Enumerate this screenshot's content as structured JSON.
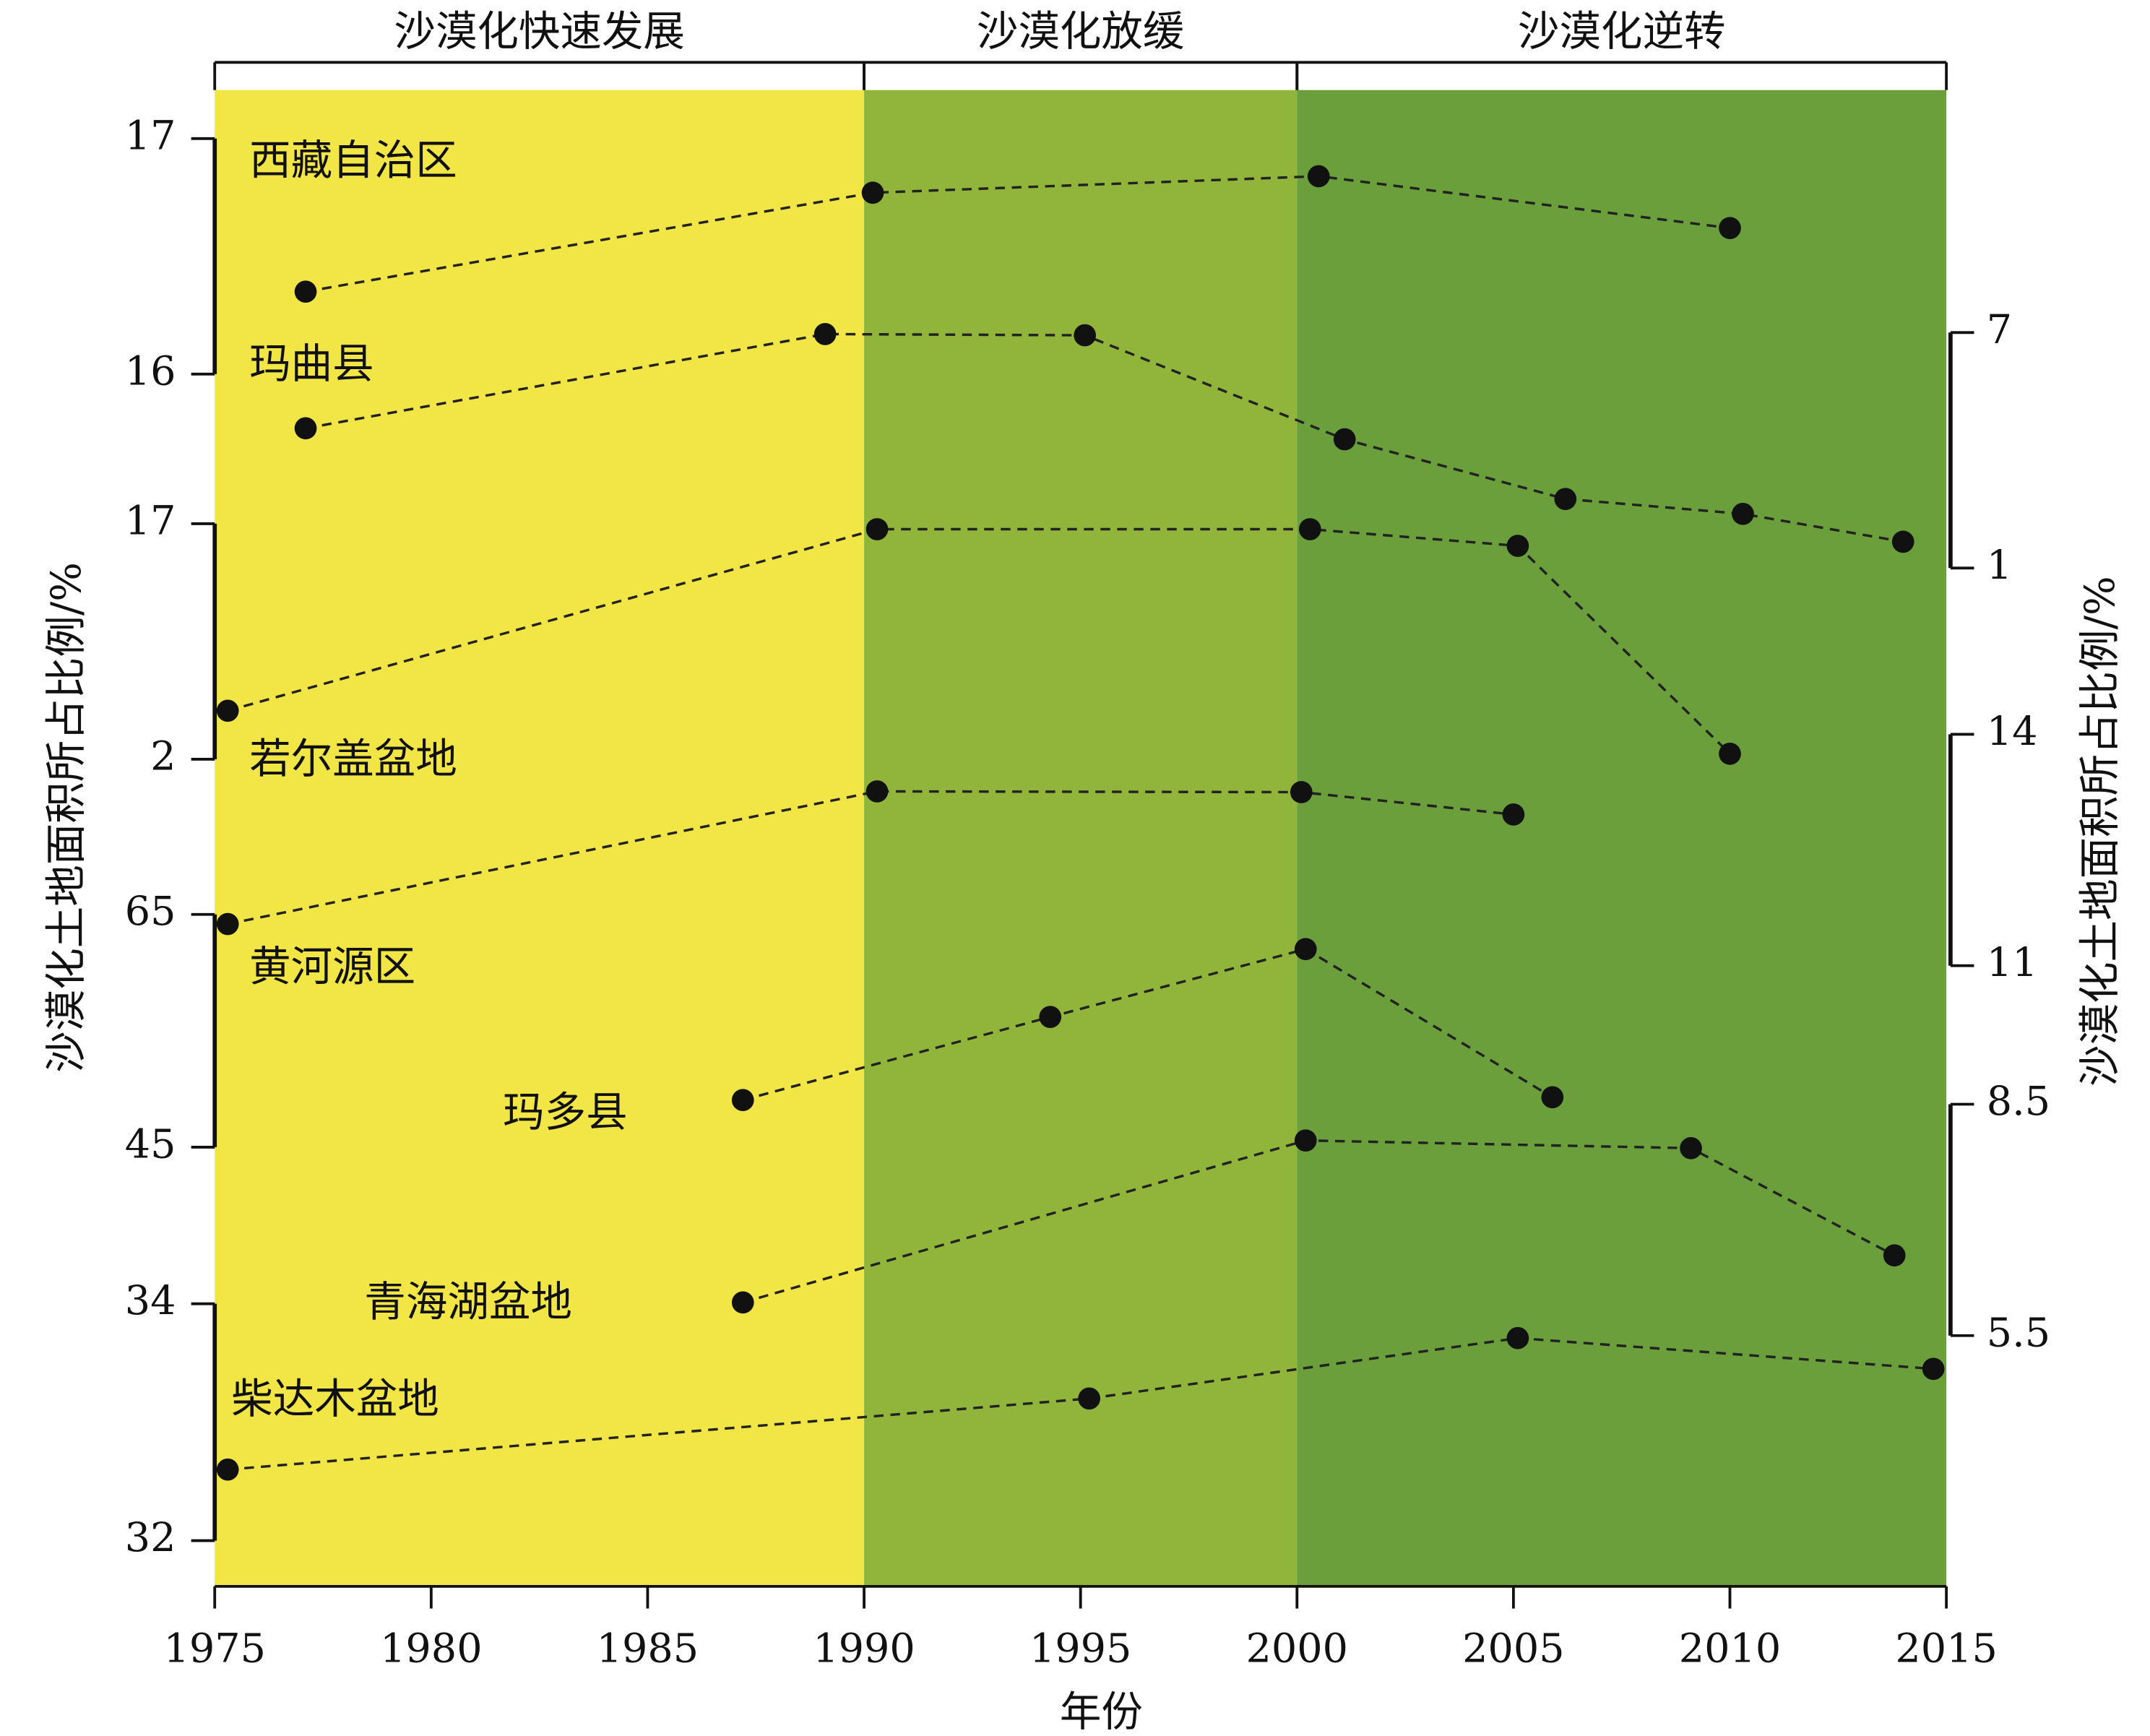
{
  "chart_data": {
    "type": "line",
    "xlabel": "年份",
    "ylabel": "沙漠化土地面积所占比例/%",
    "y2label": "沙漠化土地面积所占比例/%",
    "xlim": [
      1975,
      2015
    ],
    "xticks": [
      1975,
      1980,
      1985,
      1990,
      1995,
      2000,
      2005,
      2010,
      2015
    ],
    "phases": [
      {
        "label": "沙漠化快速发展",
        "start": 1975,
        "end": 1990,
        "color": "#f2e646"
      },
      {
        "label": "沙漠化放缓",
        "start": 1990,
        "end": 2000,
        "color": "#91b53a"
      },
      {
        "label": "沙漠化逆转",
        "start": 2000,
        "end": 2015,
        "color": "#6a9f3b"
      }
    ],
    "series": [
      {
        "name": "西藏自治区",
        "axis": "y",
        "ylim": [
          16,
          17
        ],
        "yticks": [
          17,
          16
        ],
        "color": "#111111",
        "x": [
          1977.1,
          1990.2,
          2000.5,
          2010.0
        ],
        "values": [
          16.35,
          16.77,
          16.84,
          16.62
        ]
      },
      {
        "name": "玛曲县",
        "axis": "y2",
        "ylim": [
          1,
          7
        ],
        "yticks": [
          7,
          1
        ],
        "color": "#111111",
        "x": [
          1977.1,
          1989.1,
          1995.1,
          2001.1,
          2006.2,
          2010.3,
          2014.0
        ],
        "values": [
          4.56,
          6.96,
          6.93,
          4.28,
          2.76,
          2.38,
          1.67
        ]
      },
      {
        "name": "若尔盖盆地",
        "axis": "y",
        "ylim": [
          2,
          17
        ],
        "yticks": [
          17,
          2
        ],
        "color": "#111111",
        "x": [
          1975.3,
          1990.3,
          2000.3,
          2005.1,
          2010.0
        ],
        "values": [
          5.09,
          16.65,
          16.65,
          15.59,
          2.35
        ]
      },
      {
        "name": "黄河源区",
        "axis": "y2",
        "ylim": [
          11,
          14
        ],
        "yticks": [
          14,
          11
        ],
        "color": "#111111",
        "x": [
          1975.3,
          1990.3,
          2000.1,
          2005.0
        ],
        "values": [
          11.54,
          13.26,
          13.25,
          12.96
        ]
      },
      {
        "name": "玛多县",
        "axis": "y",
        "ylim": [
          45,
          65
        ],
        "yticks": [
          65,
          45
        ],
        "color": "#111111",
        "x": [
          1987.2,
          1994.3,
          2000.2,
          2005.9
        ],
        "values": [
          49.05,
          56.19,
          62.02,
          49.29
        ]
      },
      {
        "name": "青海湖盆地",
        "axis": "y2",
        "ylim": [
          5.5,
          8.5
        ],
        "yticks": [
          8.5,
          5.5
        ],
        "color": "#111111",
        "x": [
          1987.2,
          2000.2,
          2009.1,
          2013.8
        ],
        "values": [
          5.93,
          8.03,
          7.93,
          6.54
        ]
      },
      {
        "name": "柴达木盆地",
        "axis": "y",
        "ylim": [
          32,
          34
        ],
        "yticks": [
          34,
          32
        ],
        "color": "#111111",
        "x": [
          1975.3,
          1995.2,
          2005.1,
          2014.7
        ],
        "values": [
          32.6,
          33.2,
          33.71,
          33.45
        ]
      }
    ]
  }
}
